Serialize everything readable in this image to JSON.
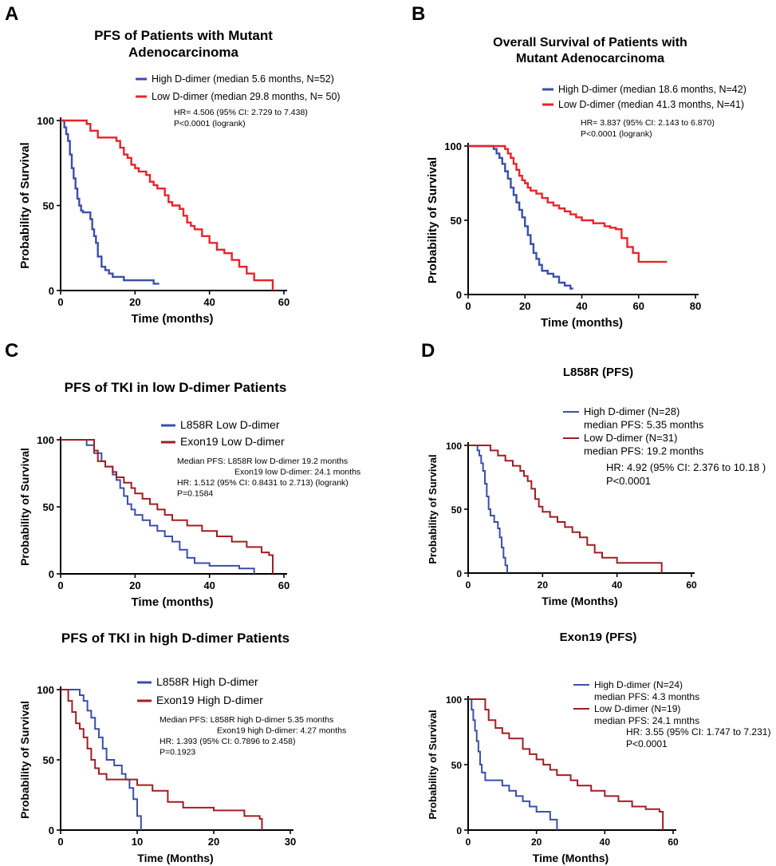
{
  "panels": [
    {
      "letter": "A"
    },
    {
      "letter": "B"
    },
    {
      "letter": "C"
    },
    {
      "letter": "D"
    }
  ],
  "chart_data": [
    {
      "id": "A",
      "type": "line",
      "subtype": "kaplan-meier",
      "title": [
        "PFS of Patients with Mutant",
        "Adenocarcinoma"
      ],
      "xlabel": "Time (months)",
      "ylabel": "Probability of Survival",
      "xlim": [
        0,
        60
      ],
      "ylim": [
        0,
        100
      ],
      "xticks": [
        0,
        20,
        40,
        60
      ],
      "yticks": [
        0,
        50,
        100
      ],
      "legend": [
        "High D-dimer (median 5.6 months, N=52)",
        "Low D-dimer (median 29.8 months, N= 50)"
      ],
      "stats": [
        "HR= 4.506 (95% CI: 2.729 to 7.438)",
        "P<0.0001 (logrank)"
      ],
      "series": [
        {
          "name": "High D-dimer",
          "color": "#3b4fa8",
          "x": [
            0,
            1,
            1.5,
            2,
            2.5,
            3,
            3.5,
            4,
            4.5,
            5,
            5.5,
            6,
            7,
            8,
            8.5,
            9,
            9.5,
            10,
            11,
            12,
            13,
            14,
            15,
            17,
            20,
            22,
            25,
            26.5
          ],
          "y": [
            100,
            96,
            92,
            88,
            80,
            72,
            66,
            60,
            54,
            50,
            47,
            46,
            46,
            42,
            36,
            32,
            28,
            20,
            14,
            12,
            10,
            8,
            8,
            6,
            6,
            6,
            4,
            4
          ]
        },
        {
          "name": "Low D-dimer",
          "color": "#e8232b",
          "x": [
            0,
            6,
            7,
            8,
            10,
            13,
            15,
            16,
            17,
            18,
            19,
            20,
            21,
            23,
            24,
            25,
            26,
            28,
            29,
            30,
            32,
            33,
            34,
            35,
            36,
            38,
            40,
            42,
            44,
            46,
            48,
            50,
            52,
            56,
            57
          ],
          "y": [
            100,
            100,
            98,
            94,
            90,
            90,
            88,
            84,
            80,
            78,
            74,
            72,
            70,
            68,
            64,
            62,
            60,
            56,
            52,
            50,
            48,
            44,
            40,
            38,
            36,
            32,
            28,
            24,
            22,
            18,
            14,
            10,
            6,
            6,
            0
          ]
        }
      ]
    },
    {
      "id": "B",
      "type": "line",
      "subtype": "kaplan-meier",
      "title": [
        "Overall Survival of Patients with",
        "Mutant Adenocarcinoma"
      ],
      "xlabel": "Time (months)",
      "ylabel": "Probability of Survival",
      "xlim": [
        0,
        80
      ],
      "ylim": [
        0,
        100
      ],
      "xticks": [
        0,
        20,
        40,
        60,
        80
      ],
      "yticks": [
        0,
        50,
        100
      ],
      "legend": [
        "High D-dimer (median 18.6 months, N=42)",
        "Low D-dimer (median 41.3 months, N=41)"
      ],
      "stats": [
        "HR= 3.837 (95% CI: 2.143 to 6.870)",
        "P<0.0001 (logrank)"
      ],
      "series": [
        {
          "name": "High D-dimer",
          "color": "#3b4fa8",
          "x": [
            0,
            8,
            9,
            10,
            11,
            12,
            13,
            14,
            15,
            16,
            17,
            18,
            19,
            20,
            21,
            22,
            23,
            24,
            25,
            26,
            28,
            30,
            32,
            34,
            36,
            37
          ],
          "y": [
            100,
            100,
            98,
            95,
            92,
            88,
            83,
            78,
            72,
            67,
            62,
            57,
            52,
            46,
            40,
            34,
            28,
            24,
            20,
            16,
            14,
            12,
            8,
            6,
            4,
            4
          ]
        },
        {
          "name": "Low D-dimer",
          "color": "#e8232b",
          "x": [
            0,
            12,
            13,
            14,
            15,
            16,
            17,
            18,
            19,
            20,
            21,
            22,
            24,
            26,
            28,
            30,
            32,
            34,
            36,
            38,
            40,
            44,
            48,
            50,
            52,
            54,
            56,
            58,
            60,
            70
          ],
          "y": [
            100,
            100,
            98,
            95,
            92,
            88,
            84,
            80,
            77,
            75,
            72,
            70,
            68,
            65,
            62,
            60,
            58,
            56,
            54,
            52,
            50,
            48,
            46,
            45,
            44,
            38,
            32,
            28,
            22,
            22
          ]
        }
      ]
    },
    {
      "id": "C1",
      "type": "line",
      "subtype": "kaplan-meier",
      "title": [
        "PFS of TKI in low D-dimer Patients"
      ],
      "xlabel": "Time (months)",
      "ylabel": "Probability of Survival",
      "xlim": [
        0,
        60
      ],
      "ylim": [
        0,
        100
      ],
      "xticks": [
        0,
        20,
        40,
        60
      ],
      "yticks": [
        0,
        50,
        100
      ],
      "legend": [
        "L858R Low D-dimer",
        "Exon19 Low D-dimer"
      ],
      "stats": [
        "Median PFS: L858R low D-dimer 19.2 months",
        "Exon19 low D-dimer: 24.1 months",
        "HR: 1.512 (95% CI: 0.8431 to 2.713) (logrank)",
        "P=0.1584"
      ],
      "series": [
        {
          "name": "L858R Low D-dimer",
          "color": "#3b4fa8",
          "x": [
            0,
            5,
            7,
            9,
            11,
            12,
            14,
            15,
            16,
            17,
            18,
            19,
            20,
            22,
            24,
            26,
            28,
            30,
            32,
            34,
            36,
            40,
            44,
            48,
            52
          ],
          "y": [
            100,
            100,
            96,
            90,
            84,
            80,
            74,
            70,
            64,
            58,
            52,
            48,
            44,
            40,
            36,
            32,
            28,
            24,
            18,
            12,
            8,
            6,
            6,
            4,
            0
          ]
        },
        {
          "name": "Exon19 Low D-dimer",
          "color": "#a01e25",
          "x": [
            0,
            8,
            9,
            10,
            12,
            14,
            15,
            17,
            19,
            20,
            22,
            24,
            26,
            28,
            30,
            34,
            38,
            42,
            46,
            50,
            54,
            56,
            57
          ],
          "y": [
            100,
            100,
            92,
            84,
            80,
            76,
            72,
            68,
            64,
            60,
            56,
            52,
            48,
            44,
            40,
            36,
            32,
            28,
            24,
            20,
            16,
            14,
            0
          ]
        }
      ]
    },
    {
      "id": "C2",
      "type": "line",
      "subtype": "kaplan-meier",
      "title": [
        "PFS of TKI in high D-dimer Patients"
      ],
      "xlabel": "Time (Months)",
      "ylabel": "Probability of Survival",
      "xlim": [
        0,
        30
      ],
      "ylim": [
        0,
        100
      ],
      "xticks": [
        0,
        10,
        20,
        30
      ],
      "yticks": [
        0,
        50,
        100
      ],
      "legend": [
        "L858R High D-dimer",
        "Exon19 High D-dimer"
      ],
      "stats": [
        "Median PFS: L858R high D-dimer 5.35 months",
        "Exon19 high D-dimer: 4.27 months",
        "HR: 1.393 (95% CI: 0.7896 to 2.458)",
        "P=0.1923"
      ],
      "series": [
        {
          "name": "L858R High D-dimer",
          "color": "#3b4fa8",
          "x": [
            0,
            1.5,
            2.5,
            3,
            3.5,
            4,
            4.5,
            5,
            5.5,
            6,
            7,
            8,
            8.5,
            9,
            9.5,
            10,
            10.5
          ],
          "y": [
            100,
            100,
            96,
            92,
            85,
            80,
            72,
            66,
            58,
            50,
            46,
            40,
            36,
            30,
            22,
            10,
            0
          ]
        },
        {
          "name": "Exon19 High D-dimer",
          "color": "#a01e25",
          "x": [
            0,
            1,
            1.5,
            2,
            2.5,
            3,
            3.5,
            4,
            4.5,
            5,
            6,
            8,
            10,
            12,
            14,
            16,
            20,
            24,
            26,
            26.3
          ],
          "y": [
            100,
            92,
            84,
            76,
            72,
            66,
            58,
            50,
            44,
            40,
            36,
            36,
            32,
            28,
            20,
            16,
            14,
            10,
            8,
            0
          ]
        }
      ]
    },
    {
      "id": "D1",
      "type": "line",
      "subtype": "kaplan-meier",
      "title": [
        "L858R (PFS)"
      ],
      "xlabel": "Time (Months)",
      "ylabel": "Probability of Survival",
      "xlim": [
        0,
        60
      ],
      "ylim": [
        0,
        100
      ],
      "xticks": [
        0,
        20,
        40,
        60
      ],
      "yticks": [
        0,
        50,
        100
      ],
      "legend": [
        "High D-dimer (N=28)",
        "median PFS: 5.35 months",
        "Low D-dimer (N=31)",
        "median PFS: 19.2 months"
      ],
      "stats": [
        "HR: 4.92 (95% CI: 2.376 to 10.18 )",
        "P<0.0001"
      ],
      "series": [
        {
          "name": "High D-dimer",
          "color": "#3b4fa8",
          "x": [
            0,
            2,
            2.5,
            3,
            3.5,
            4,
            4.5,
            5,
            5.5,
            6,
            7,
            8,
            8.5,
            9,
            9.5,
            10,
            10.5
          ],
          "y": [
            100,
            100,
            96,
            92,
            86,
            80,
            70,
            60,
            50,
            45,
            40,
            35,
            28,
            20,
            12,
            6,
            0
          ]
        },
        {
          "name": "Low D-dimer",
          "color": "#a01e25",
          "x": [
            0,
            5,
            6,
            8,
            10,
            12,
            14,
            15,
            16,
            17,
            18,
            19,
            20,
            22,
            24,
            26,
            28,
            30,
            32,
            34,
            36,
            40,
            44,
            48,
            52
          ],
          "y": [
            100,
            100,
            96,
            92,
            88,
            84,
            80,
            76,
            72,
            66,
            58,
            52,
            48,
            44,
            40,
            36,
            32,
            28,
            22,
            16,
            12,
            8,
            8,
            8,
            0
          ]
        }
      ]
    },
    {
      "id": "D2",
      "type": "line",
      "subtype": "kaplan-meier",
      "title": [
        "Exon19 (PFS)"
      ],
      "xlabel": "Time (Months)",
      "ylabel": "Probability of Survival",
      "xlim": [
        0,
        60
      ],
      "ylim": [
        0,
        100
      ],
      "xticks": [
        0,
        20,
        40,
        60
      ],
      "yticks": [
        0,
        50,
        100
      ],
      "legend": [
        "High D-dimer (N=24)",
        "median PFS: 4.3 months",
        "Low D-dimer (N=19)",
        "median PFS: 24.1 mnths"
      ],
      "stats": [
        "HR: 3.55 (95% CI:  1.747 to 7.231)",
        "P<0.0001"
      ],
      "series": [
        {
          "name": "High D-dimer",
          "color": "#3b4fa8",
          "x": [
            0,
            1,
            1.5,
            2,
            2.5,
            3,
            3.5,
            4,
            5,
            7,
            10,
            12,
            14,
            16,
            18,
            20,
            24,
            26
          ],
          "y": [
            100,
            92,
            84,
            76,
            68,
            60,
            50,
            44,
            38,
            38,
            34,
            30,
            26,
            22,
            18,
            14,
            8,
            0
          ]
        },
        {
          "name": "Low D-dimer",
          "color": "#a01e25",
          "x": [
            0,
            4,
            5,
            6,
            8,
            10,
            12,
            16,
            18,
            20,
            22,
            24,
            26,
            30,
            32,
            36,
            40,
            44,
            48,
            52,
            56,
            57
          ],
          "y": [
            100,
            100,
            92,
            84,
            78,
            74,
            70,
            62,
            58,
            54,
            50,
            46,
            42,
            38,
            34,
            30,
            26,
            22,
            18,
            16,
            14,
            0
          ]
        }
      ]
    }
  ]
}
